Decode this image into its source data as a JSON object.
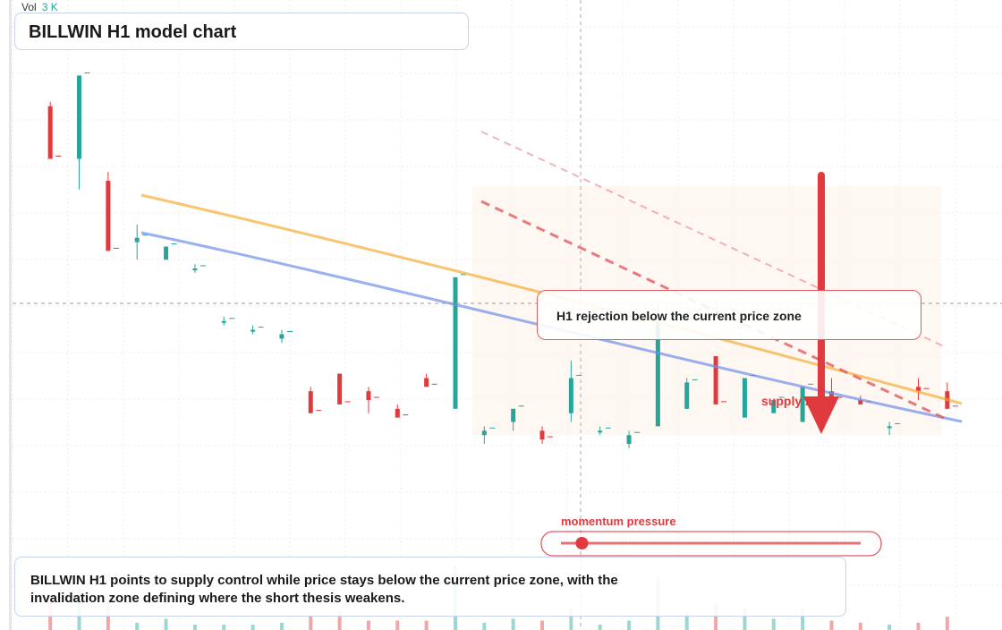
{
  "volume": {
    "label": "Vol",
    "value": "3 K"
  },
  "title": "BILLWIN H1 model chart",
  "callout": "H1 rejection below the current price zone",
  "supply_label": "supply zone",
  "momentum_label": "momentum pressure",
  "momentum_level": 0.07,
  "summary": "BILLWIN H1 points to supply control while price stays below the current price zone, with the invalidation zone defining where the short thesis weakens.",
  "colors": {
    "up": "#26a69a",
    "down": "#e03a3e",
    "ma_fast": "#f5a623",
    "ma_slow": "#6f8fe8",
    "resistance": "#e05a60",
    "grid": "#e8e8e8"
  },
  "chart_data": {
    "type": "candlestick",
    "timeframe": "H1",
    "ylim": [
      0,
      100
    ],
    "candles": [
      {
        "o": 87,
        "h": 88,
        "l": 75,
        "c": 75
      },
      {
        "o": 75,
        "h": 94,
        "l": 68,
        "c": 94
      },
      {
        "o": 70,
        "h": 72,
        "l": 54,
        "c": 54
      },
      {
        "o": 56,
        "h": 60,
        "l": 52,
        "c": 57
      },
      {
        "o": 52,
        "h": 55,
        "l": 53,
        "c": 55
      },
      {
        "o": 50,
        "h": 51,
        "l": 49,
        "c": 50
      },
      {
        "o": 38,
        "h": 39,
        "l": 37,
        "c": 38
      },
      {
        "o": 36,
        "h": 37,
        "l": 35,
        "c": 36
      },
      {
        "o": 34,
        "h": 36,
        "l": 33,
        "c": 35
      },
      {
        "o": 22,
        "h": 23,
        "l": 17,
        "c": 17
      },
      {
        "o": 26,
        "h": 26,
        "l": 19,
        "c": 19
      },
      {
        "o": 22,
        "h": 23,
        "l": 17,
        "c": 20
      },
      {
        "o": 18,
        "h": 19,
        "l": 16,
        "c": 16
      },
      {
        "o": 25,
        "h": 26,
        "l": 23,
        "c": 23
      },
      {
        "o": 18,
        "h": 48,
        "l": 18,
        "c": 48
      },
      {
        "o": 12,
        "h": 14,
        "l": 10,
        "c": 13
      },
      {
        "o": 15,
        "h": 18,
        "l": 13,
        "c": 18
      },
      {
        "o": 13,
        "h": 14,
        "l": 10,
        "c": 11
      },
      {
        "o": 17,
        "h": 29,
        "l": 15,
        "c": 25
      },
      {
        "o": 13,
        "h": 14,
        "l": 12,
        "c": 13
      },
      {
        "o": 10,
        "h": 13,
        "l": 9,
        "c": 12
      },
      {
        "o": 14,
        "h": 42,
        "l": 14,
        "c": 38
      },
      {
        "o": 18,
        "h": 25,
        "l": 18,
        "c": 24
      },
      {
        "o": 30,
        "h": 30,
        "l": 19,
        "c": 19
      },
      {
        "o": 16,
        "h": 25,
        "l": 16,
        "c": 25
      },
      {
        "o": 17,
        "h": 20,
        "l": 17,
        "c": 20
      },
      {
        "o": 15,
        "h": 23,
        "l": 15,
        "c": 23
      },
      {
        "o": 22,
        "h": 25,
        "l": 20,
        "c": 20
      },
      {
        "o": 20,
        "h": 21,
        "l": 19,
        "c": 19
      },
      {
        "o": 14,
        "h": 15,
        "l": 12,
        "c": 14
      },
      {
        "o": 23,
        "h": 25,
        "l": 20,
        "c": 22
      },
      {
        "o": 22,
        "h": 24,
        "l": 18,
        "c": 18
      }
    ],
    "ma_fast": [
      [
        0,
        52
      ],
      [
        1,
        47
      ],
      [
        2,
        42
      ],
      [
        3,
        37
      ],
      [
        4,
        33
      ],
      [
        5,
        28
      ]
    ],
    "ma_slow": [
      [
        0,
        48
      ],
      [
        1,
        44
      ],
      [
        2,
        40
      ],
      [
        3,
        35
      ],
      [
        4,
        30
      ],
      [
        5,
        24
      ]
    ]
  }
}
